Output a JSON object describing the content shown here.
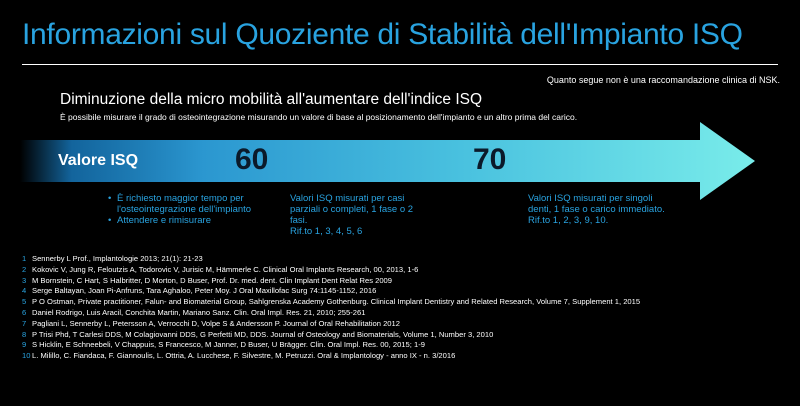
{
  "colors": {
    "accent": "#29a3e0",
    "background": "#000000",
    "arrow_start": "#1676b8",
    "arrow_end": "#79ecea"
  },
  "title": "Informazioni sul Quoziente di Stabilità dell'Impianto ISQ",
  "disclaimer": "Quanto segue non è una raccomandazione clinica di NSK.",
  "heading": "Diminuzione della micro mobilità all'aumentare dell'indice ISQ",
  "subheading": "È possibile misurare il grado di osteointegrazione misurando un valore di base al posizionamento dell'impianto e un altro prima del carico.",
  "arrow": {
    "label": "Valore ISQ",
    "value_low": "60",
    "value_high": "70"
  },
  "columns": {
    "low": [
      "È richiesto maggior tempo per l'osteointegrazione dell'impianto",
      "Attendere e rimisurare"
    ],
    "mid": {
      "text": "Valori ISQ misurati per casi parziali o completi, 1 fase o 2 fasi.",
      "refs": "Rif.to 1, 3, 4, 5, 6"
    },
    "high": {
      "text": "Valori ISQ misurati per singoli denti, 1 fase o carico immediato.",
      "refs": "Rif.to 1, 2, 3, 9, 10."
    }
  },
  "references": [
    {
      "num": "1",
      "text": "Sennerby L Prof., Implantologie 2013; 21(1): 21-23"
    },
    {
      "num": "2",
      "text": "Kokovic V, Jung R, Feloutzis A, Todorovic V, Jurisic M, Hämmerle C. Clinical Oral Implants Research, 00, 2013, 1-6"
    },
    {
      "num": "3",
      "text": "M Bornstein, C Hart, S Halbritter, D Morton, D Buser, Prof. Dr. med. dent. Clin Implant Dent Relat Res 2009"
    },
    {
      "num": "4",
      "text": "Serge Baltayan, Joan Pi-Anfruns, Tara Aghaloo, Peter Moy. J Oral Maxillofac Surg 74:1145-1152, 2016"
    },
    {
      "num": "5",
      "text": "P O Ostman, Private practitioner, Falun- and Biomaterial Group, Sahlgrenska Academy Gothenburg. Clinical Implant  Dentistry and Related Research, Volume 7, Supplement 1, 2015"
    },
    {
      "num": "6",
      "text": "Daniel Rodrigo, Luis Aracil, Conchita Martin, Mariano Sanz. Clin. Oral Impl. Res. 21, 2010; 255-261"
    },
    {
      "num": "7",
      "text": "Pagliani L, Sennerby L, Petersson A, Verrocchi D, Volpe S & Andersson P. Journal of Oral Rehabilitation 2012"
    },
    {
      "num": "8",
      "text": "P Trisi Phd, T Carlesi DDS, M Colagiovanni DDS, G Perfetti MD, DDS. Journal of Osteology and Biomaterials, Volume 1,  Number 3, 2010"
    },
    {
      "num": "9",
      "text": "S Hicklin, E Schneebeli, V Chappuis, S Francesco, M Janner, D Buser, U Brägger. Clin. Oral Impl. Res. 00, 2015; 1-9"
    },
    {
      "num": "10",
      "text": "L. Milillo, C. Fiandaca, F. Giannoulis, L. Ottria, A. Lucchese, F. Silvestre, M. Petruzzi. Oral & Implantology - anno IX - n. 3/2016"
    }
  ]
}
